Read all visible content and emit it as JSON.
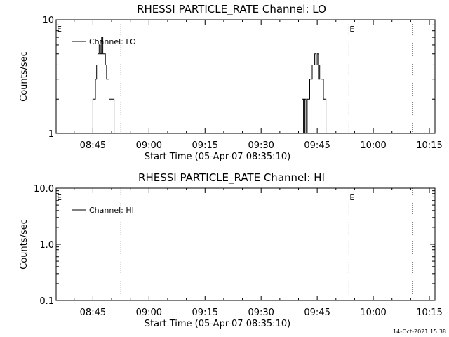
{
  "footer": {
    "timestamp": "14-Oct-2021 15:38"
  },
  "chart_data": [
    {
      "type": "line",
      "title": "RHESSI PARTICLE_RATE Channel: LO",
      "xlabel": "Start Time (05-Apr-07 08:35:10)",
      "ylabel": "Counts/sec",
      "yscale": "log",
      "ylim": [
        1,
        10
      ],
      "xlim": [
        "08:35:10",
        "10:16:30"
      ],
      "y_ticks": [
        "1",
        "10"
      ],
      "x_ticks": [
        "08:45",
        "09:00",
        "09:15",
        "09:30",
        "09:45",
        "10:00",
        "10:15"
      ],
      "grid": false,
      "legend_position": "top-left",
      "series": [
        {
          "name": "Channel: LO",
          "x": [
            "08:44:30",
            "08:45:00",
            "08:45:20",
            "08:45:40",
            "08:46:00",
            "08:46:20",
            "08:46:40",
            "08:47:00",
            "08:47:20",
            "08:47:40",
            "08:48:00",
            "08:48:20",
            "08:48:40",
            "08:49:00",
            "08:49:20",
            "08:49:40",
            "08:50:00",
            "08:50:20",
            "08:50:40",
            "08:51:00",
            "08:51:20",
            "08:51:40",
            "09:41:00",
            "09:41:20",
            "09:41:40",
            "09:42:00",
            "09:42:20",
            "09:42:40",
            "09:43:00",
            "09:43:20",
            "09:43:40",
            "09:44:00",
            "09:44:20",
            "09:44:40",
            "09:45:00",
            "09:45:20",
            "09:45:40",
            "09:46:00",
            "09:46:20",
            "09:46:40",
            "09:47:00",
            "09:47:20",
            "09:47:40",
            "09:48:00"
          ],
          "values": [
            1,
            2,
            2,
            3,
            4,
            5,
            6,
            5,
            7,
            5,
            5,
            4,
            3,
            3,
            2,
            2,
            2,
            2,
            1,
            1,
            1,
            null,
            2,
            1,
            2,
            1,
            2,
            2,
            3,
            3,
            4,
            4,
            5,
            4,
            5,
            3,
            4,
            3,
            3,
            2,
            2,
            1,
            1,
            null
          ]
        }
      ],
      "markers": [
        {
          "label": "E",
          "x": "08:35:10"
        },
        {
          "label": "",
          "x": "08:52:30"
        },
        {
          "label": "E",
          "x": "09:53:30"
        },
        {
          "label": "",
          "x": "10:10:30"
        }
      ]
    },
    {
      "type": "line",
      "title": "RHESSI PARTICLE_RATE Channel: HI",
      "xlabel": "Start Time (05-Apr-07 08:35:10)",
      "ylabel": "Counts/sec",
      "yscale": "log",
      "ylim": [
        0.1,
        10
      ],
      "xlim": [
        "08:35:10",
        "10:16:30"
      ],
      "y_ticks": [
        "0.1",
        "1.0",
        "10.0"
      ],
      "x_ticks": [
        "08:45",
        "09:00",
        "09:15",
        "09:30",
        "09:45",
        "10:00",
        "10:15"
      ],
      "grid": false,
      "legend_position": "top-left",
      "series": [
        {
          "name": "Channel: HI",
          "x": [],
          "values": []
        }
      ],
      "markers": [
        {
          "label": "E",
          "x": "08:35:10"
        },
        {
          "label": "",
          "x": "08:52:30"
        },
        {
          "label": "E",
          "x": "09:53:30"
        },
        {
          "label": "",
          "x": "10:10:30"
        }
      ]
    }
  ]
}
